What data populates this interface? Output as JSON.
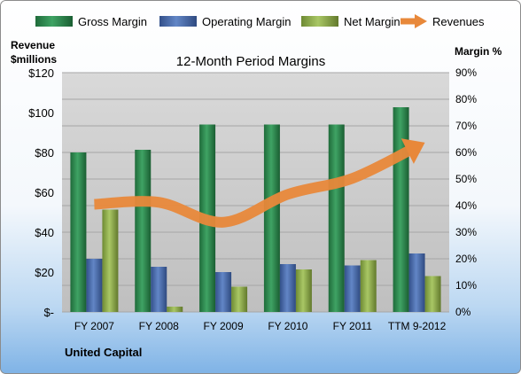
{
  "chart_data": {
    "type": "bar",
    "title": "12-Month Period Margins",
    "left_axis_label_line1": "Revenue",
    "left_axis_label_line2": "$millions",
    "right_axis_label": "Margin %",
    "footer_label": "United Capital",
    "categories": [
      "FY 2007",
      "FY 2008",
      "FY 2009",
      "FY 2010",
      "FY 2011",
      "TTM 9-2012"
    ],
    "left_ticks": [
      "$-",
      "$20",
      "$40",
      "$60",
      "$80",
      "$100",
      "$120"
    ],
    "right_ticks": [
      "0%",
      "10%",
      "20%",
      "30%",
      "40%",
      "50%",
      "60%",
      "70%",
      "80%",
      "90%"
    ],
    "left_ylim": [
      0,
      120
    ],
    "right_ylim": [
      0,
      90
    ],
    "legend_position": "top",
    "series": [
      {
        "name": "Gross Margin",
        "axis": "right",
        "kind": "bar",
        "color": "#2E8B4E",
        "values": [
          60,
          61,
          70.5,
          70.5,
          70.5,
          77
        ]
      },
      {
        "name": "Operating Margin",
        "axis": "right",
        "kind": "bar",
        "color": "#4A69A8",
        "values": [
          20,
          17,
          15,
          18,
          17.5,
          22
        ]
      },
      {
        "name": "Net Margin",
        "axis": "right",
        "kind": "bar",
        "color": "#8FB04A",
        "values": [
          38.5,
          2,
          9.5,
          16,
          19.5,
          13.5
        ]
      },
      {
        "name": "Revenues",
        "axis": "left",
        "kind": "line",
        "color": "#E8883A",
        "values": [
          54,
          55,
          45,
          59,
          67,
          83
        ]
      }
    ],
    "grid": true
  }
}
